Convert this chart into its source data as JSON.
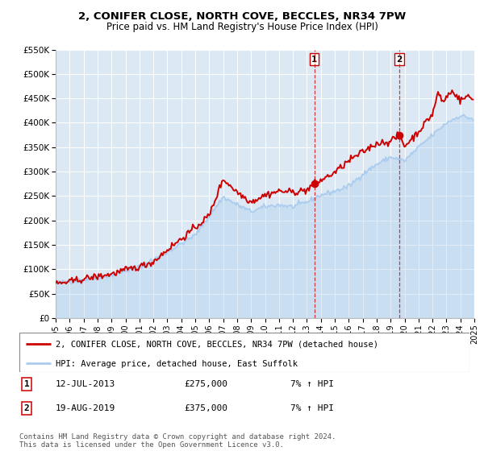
{
  "title": "2, CONIFER CLOSE, NORTH COVE, BECCLES, NR34 7PW",
  "subtitle": "Price paid vs. HM Land Registry's House Price Index (HPI)",
  "background_color": "#ffffff",
  "plot_bg_color": "#dce9f5",
  "grid_color": "#ffffff",
  "red_line_color": "#cc0000",
  "blue_line_color": "#aaccee",
  "sale1_x": 2013.53,
  "sale1_y": 275000,
  "sale2_x": 2019.63,
  "sale2_y": 375000,
  "ylim": [
    0,
    550000
  ],
  "xlim": [
    1995,
    2025
  ],
  "yticks": [
    0,
    50000,
    100000,
    150000,
    200000,
    250000,
    300000,
    350000,
    400000,
    450000,
    500000,
    550000
  ],
  "ytick_labels": [
    "£0",
    "£50K",
    "£100K",
    "£150K",
    "£200K",
    "£250K",
    "£300K",
    "£350K",
    "£400K",
    "£450K",
    "£500K",
    "£550K"
  ],
  "xticks": [
    1995,
    1996,
    1997,
    1998,
    1999,
    2000,
    2001,
    2002,
    2003,
    2004,
    2005,
    2006,
    2007,
    2008,
    2009,
    2010,
    2011,
    2012,
    2013,
    2014,
    2015,
    2016,
    2017,
    2018,
    2019,
    2020,
    2021,
    2022,
    2023,
    2024,
    2025
  ],
  "legend_red": "2, CONIFER CLOSE, NORTH COVE, BECCLES, NR34 7PW (detached house)",
  "legend_blue": "HPI: Average price, detached house, East Suffolk",
  "sale1_label": "1",
  "sale1_date": "12-JUL-2013",
  "sale1_price": "£275,000",
  "sale1_hpi": "7% ↑ HPI",
  "sale2_label": "2",
  "sale2_date": "19-AUG-2019",
  "sale2_price": "£375,000",
  "sale2_hpi": "7% ↑ HPI",
  "footer": "Contains HM Land Registry data © Crown copyright and database right 2024.\nThis data is licensed under the Open Government Licence v3.0."
}
